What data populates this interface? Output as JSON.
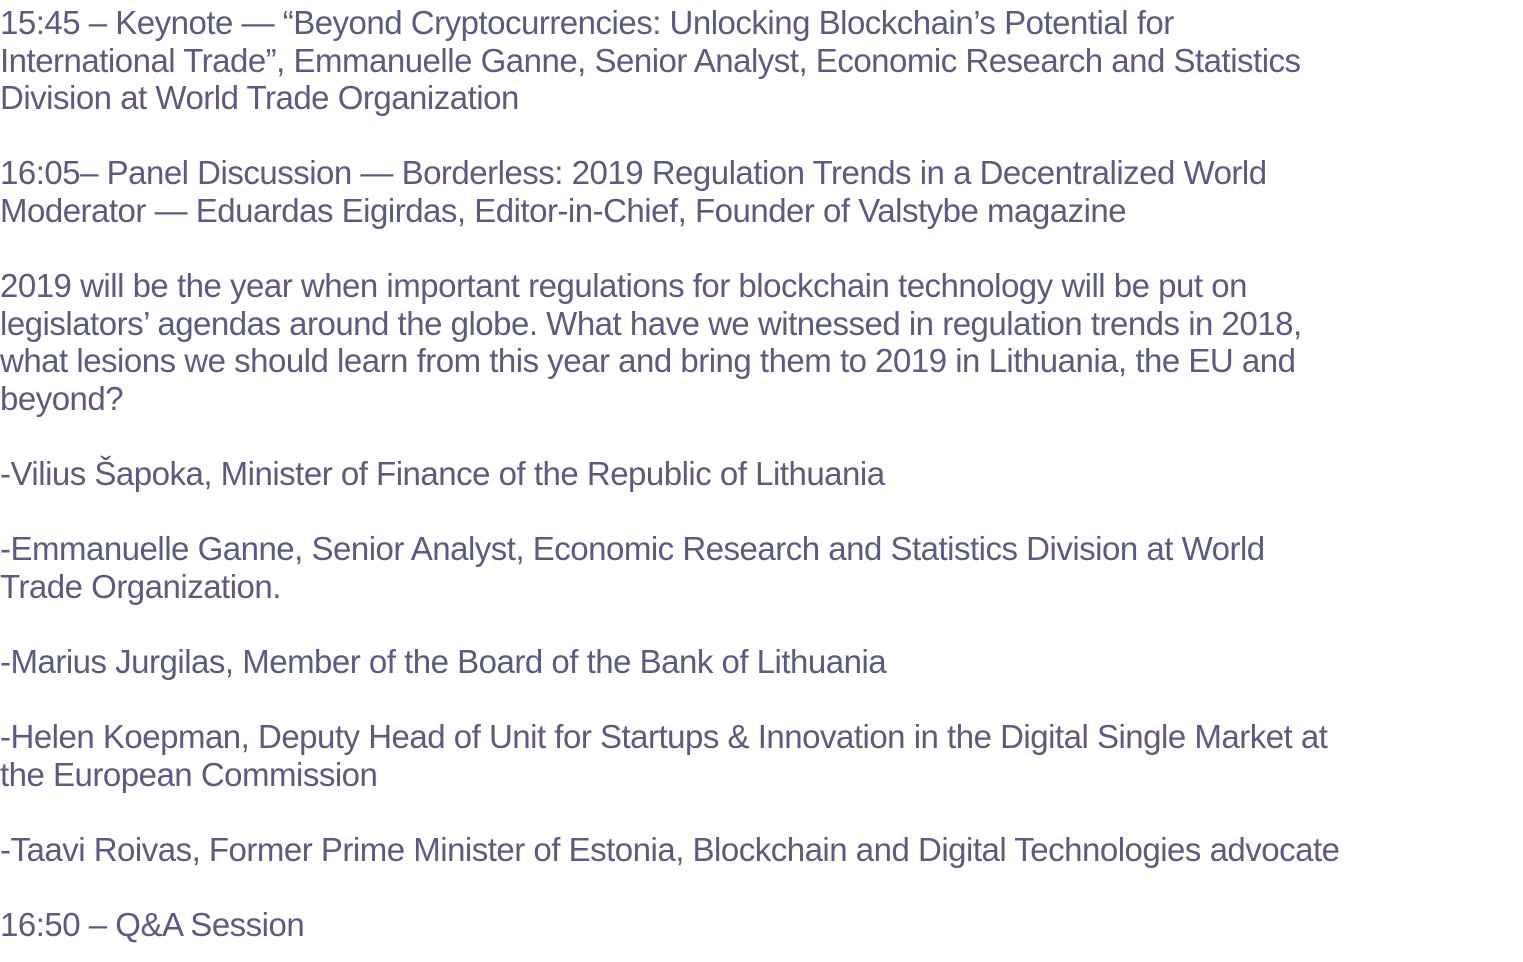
{
  "agenda": {
    "keynote": {
      "lines": [
        "15:45 – Keynote — “Beyond Cryptocurrencies: Unlocking Blockchain’s Potential for",
        "International Trade”, Emmanuelle Ganne, Senior Analyst, Economic Research and Statistics",
        "Division at World Trade Organization"
      ]
    },
    "panel": {
      "lines": [
        "16:05– Panel Discussion — Borderless: 2019 Regulation Trends in a Decentralized World",
        "Moderator — Eduardas Eigirdas, Editor-in-Chief, Founder of Valstybe magazine"
      ]
    },
    "description": {
      "lines": [
        "2019 will be the year when important regulations for blockchain technology will be put on",
        "legislators’ agendas around the globe. What have we witnessed in regulation trends in 2018,",
        "what lesions we should learn from this year and bring them to 2019 in Lithuania, the EU and",
        "beyond?"
      ]
    },
    "panelists": [
      {
        "lines": [
          "-Vilius Šapoka, Minister of Finance of the Republic of Lithuania"
        ]
      },
      {
        "lines": [
          "-Emmanuelle Ganne, Senior Analyst, Economic Research and Statistics Division at World",
          "Trade Organization."
        ]
      },
      {
        "lines": [
          "-Marius Jurgilas, Member of the Board of the Bank of Lithuania"
        ]
      },
      {
        "lines": [
          "-Helen Koepman, Deputy Head of Unit for Startups & Innovation in the Digital Single Market at",
          "the European Commission"
        ]
      },
      {
        "lines": [
          "-Taavi Roivas, Former Prime Minister of Estonia, Blockchain and Digital Technologies advocate"
        ]
      }
    ],
    "qa": {
      "lines": [
        "16:50 – Q&A Session"
      ]
    }
  },
  "colors": {
    "text": "#5b5b82",
    "background": "#ffffff"
  }
}
